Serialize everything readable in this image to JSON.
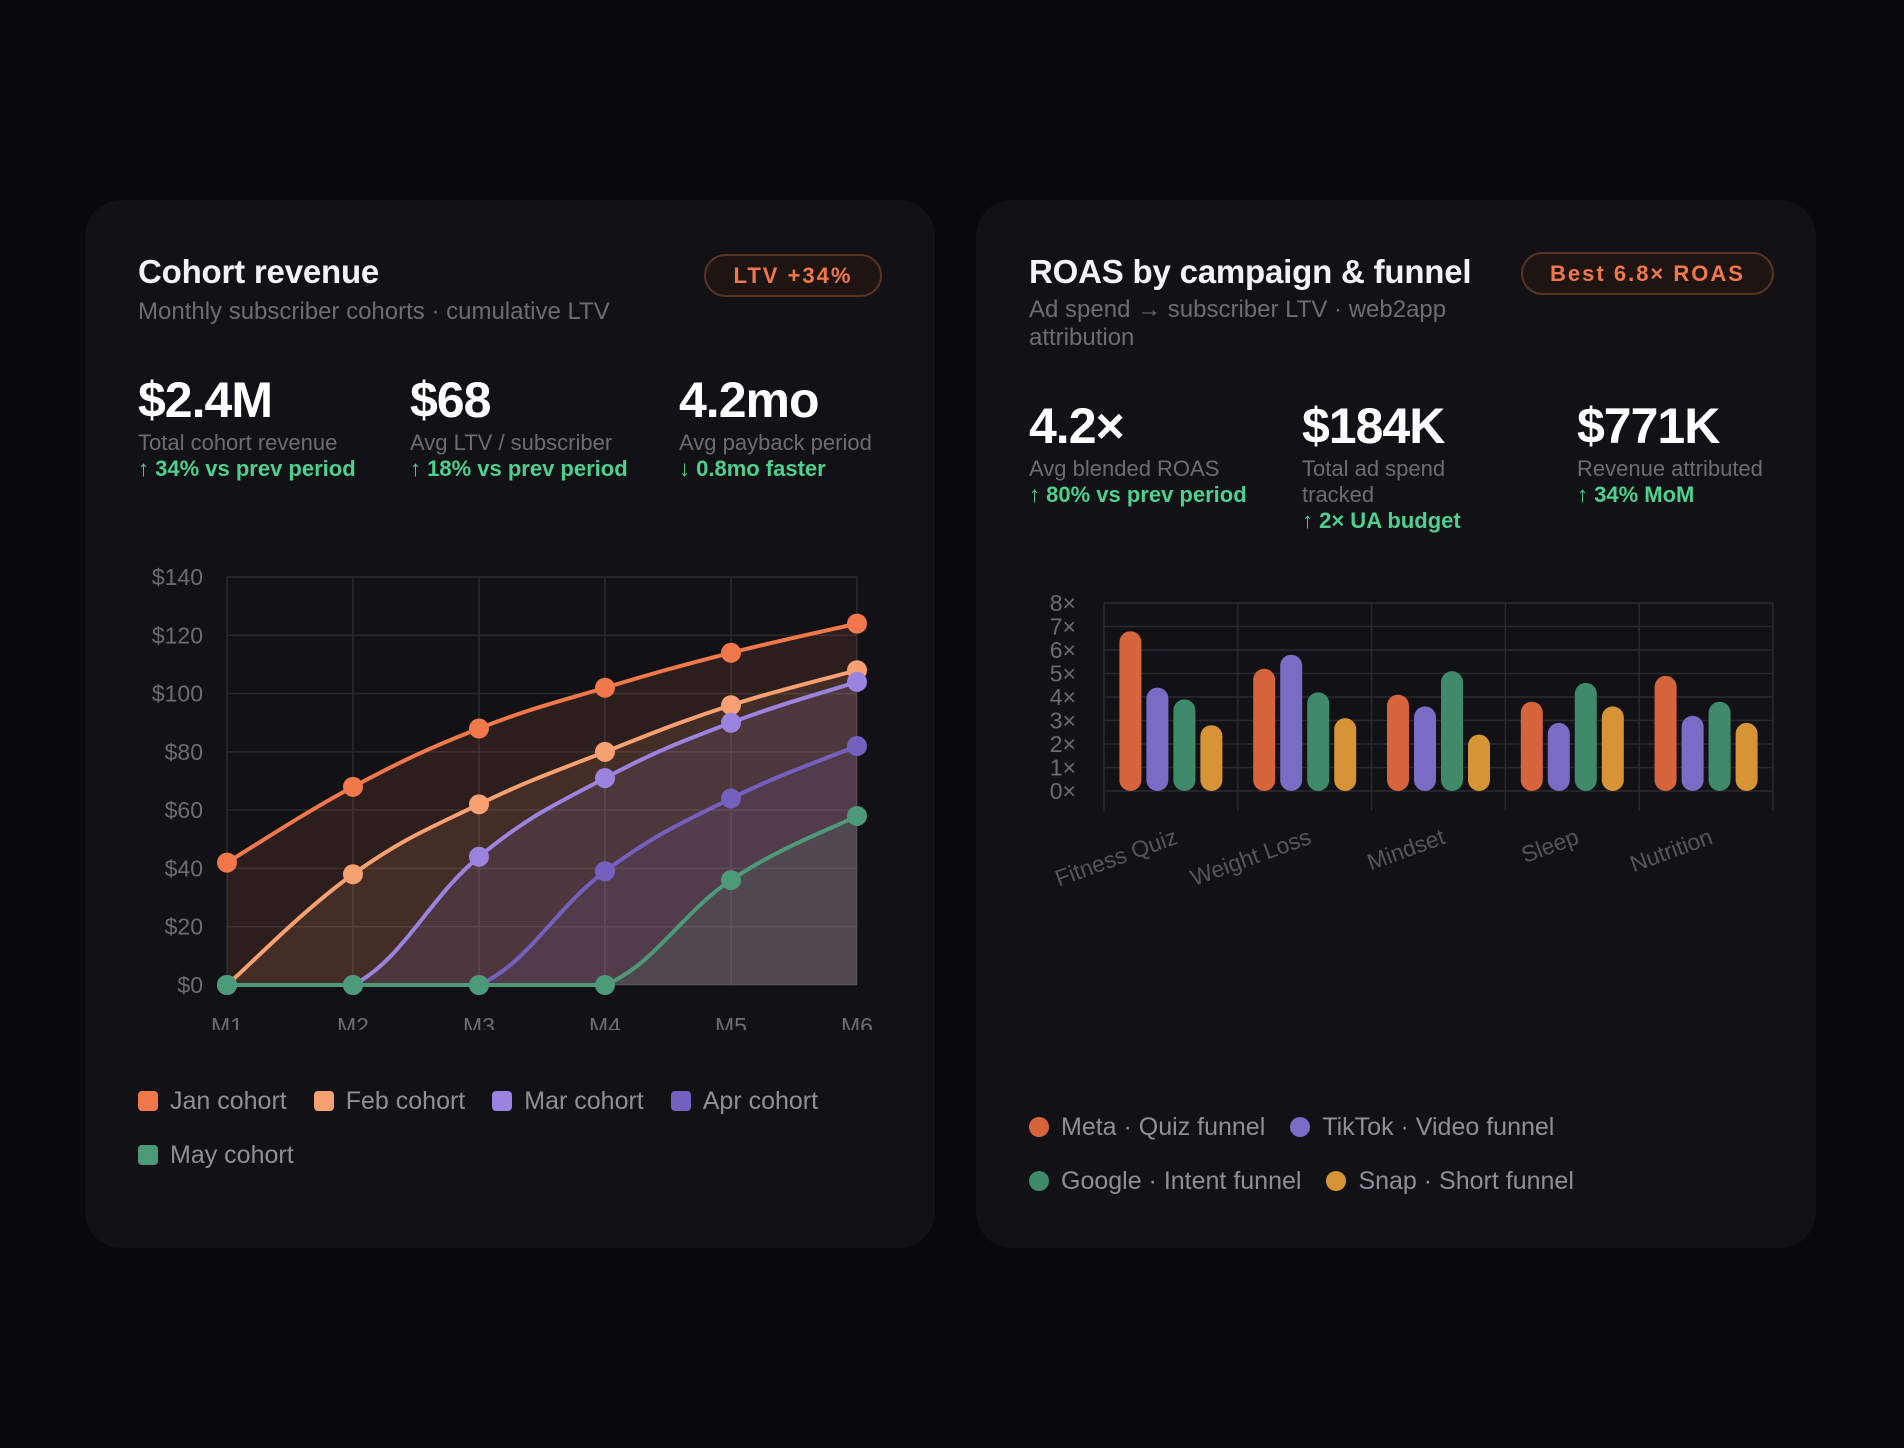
{
  "cohort_card": {
    "title": "Cohort revenue",
    "subtitle": "Monthly subscriber cohorts · cumulative LTV",
    "badge": "LTV +34%",
    "kpis": [
      {
        "value": "$2.4M",
        "label": "Total cohort revenue",
        "delta": "↑ 34% vs prev period"
      },
      {
        "value": "$68",
        "label": "Avg LTV / subscriber",
        "delta": "↑ 18% vs prev period"
      },
      {
        "value": "4.2mo",
        "label": "Avg payback period",
        "delta": "↓ 0.8mo faster"
      }
    ]
  },
  "roas_card": {
    "title": "ROAS by campaign & funnel",
    "subtitle": "Ad spend → subscriber LTV · web2app attribution",
    "badge": "Best 6.8× ROAS",
    "kpis": [
      {
        "value": "4.2×",
        "label": "Avg blended ROAS",
        "delta": "↑ 80% vs prev period"
      },
      {
        "value": "$184K",
        "label": "Total ad spend tracked",
        "delta": "↑ 2× UA budget"
      },
      {
        "value": "$771K",
        "label": "Revenue attributed",
        "delta": "↑ 34% MoM"
      }
    ]
  },
  "chart_data": [
    {
      "type": "area",
      "title": "Cohort revenue",
      "xlabel": "",
      "ylabel": "",
      "categories": [
        "M1",
        "M2",
        "M3",
        "M4",
        "M5",
        "M6"
      ],
      "ylim": [
        0,
        140
      ],
      "yticks": [
        "$0",
        "$20",
        "$40",
        "$60",
        "$80",
        "$100",
        "$120",
        "$140"
      ],
      "grid": true,
      "legend": "bottom",
      "series": [
        {
          "name": "Jan cohort",
          "color": "#f0784a",
          "values": [
            42,
            68,
            88,
            102,
            114,
            124
          ]
        },
        {
          "name": "Feb cohort",
          "color": "#f7a072",
          "values": [
            0,
            38,
            62,
            80,
            96,
            108
          ]
        },
        {
          "name": "Mar cohort",
          "color": "#9b84e0",
          "values": [
            0,
            0,
            44,
            71,
            90,
            104
          ]
        },
        {
          "name": "Apr cohort",
          "color": "#7461bf",
          "values": [
            0,
            0,
            0,
            39,
            64,
            82
          ]
        },
        {
          "name": "May cohort",
          "color": "#4c9a78",
          "values": [
            0,
            0,
            0,
            0,
            36,
            58
          ]
        }
      ]
    },
    {
      "type": "bar",
      "title": "ROAS by campaign & funnel",
      "xlabel": "",
      "ylabel": "",
      "categories": [
        "Fitness Quiz",
        "Weight Loss",
        "Mindset",
        "Sleep",
        "Nutrition"
      ],
      "ylim": [
        0,
        8
      ],
      "yticks": [
        "0×",
        "1×",
        "2×",
        "3×",
        "4×",
        "5×",
        "6×",
        "7×",
        "8×"
      ],
      "grid": true,
      "legend": "bottom",
      "series": [
        {
          "name": "Meta · Quiz funnel",
          "color": "#d6643c",
          "values": [
            6.8,
            5.2,
            4.1,
            3.8,
            4.9
          ]
        },
        {
          "name": "TikTok · Video funnel",
          "color": "#7a6cc4",
          "values": [
            4.4,
            5.8,
            3.6,
            2.9,
            3.2
          ]
        },
        {
          "name": "Google · Intent funnel",
          "color": "#3f8a6a",
          "values": [
            3.9,
            4.2,
            5.1,
            4.6,
            3.8
          ]
        },
        {
          "name": "Snap · Short funnel",
          "color": "#d69436",
          "values": [
            2.8,
            3.1,
            2.4,
            3.6,
            2.9
          ]
        }
      ]
    }
  ]
}
